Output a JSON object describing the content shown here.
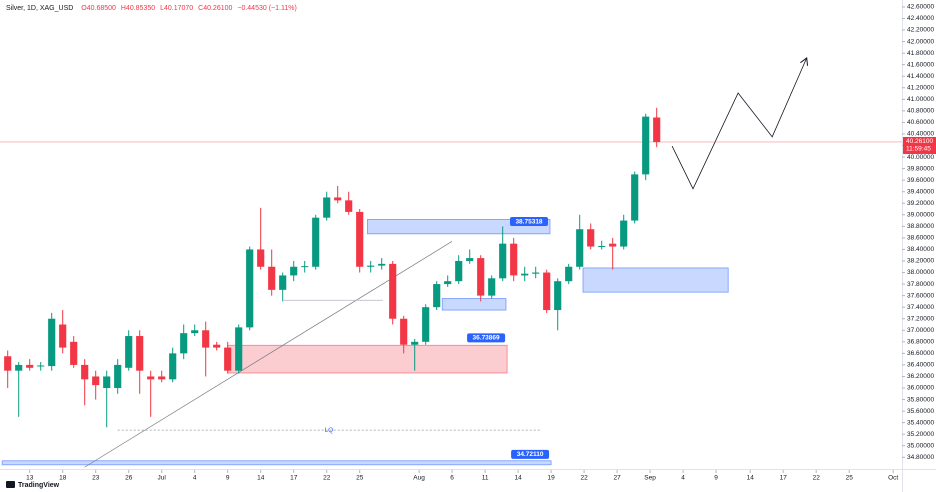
{
  "chart_data": {
    "type": "candlestick",
    "header": {
      "symbol": "Silver, 1D, XAG_USD",
      "open": "O40.68500",
      "high": "H40.85350",
      "low": "L40.17070",
      "close": "C40.26100",
      "change": "−0.44530 (−1.11%)"
    },
    "up_color": "#089981",
    "down_color": "#f23645",
    "x": [
      0,
      1,
      2,
      3,
      4,
      5,
      6,
      7,
      8,
      9,
      10,
      11,
      12,
      13,
      14,
      15,
      16,
      17,
      18,
      19,
      20,
      21,
      22,
      23,
      24,
      25,
      26,
      27,
      28,
      29,
      30,
      31,
      32,
      33,
      34,
      35,
      36,
      37,
      38,
      39,
      40,
      41,
      42,
      43,
      44,
      45,
      46,
      47,
      48,
      49,
      50,
      51,
      52,
      53,
      54,
      55,
      56,
      57,
      58,
      59
    ],
    "candles": {
      "open": [
        36.55,
        36.3,
        36.4,
        36.38,
        36.38,
        37.1,
        36.8,
        36.4,
        36.2,
        36.0,
        36.0,
        36.35,
        36.9,
        36.2,
        36.2,
        36.15,
        36.6,
        36.95,
        37.0,
        36.75,
        36.7,
        36.3,
        37.05,
        38.4,
        38.1,
        37.7,
        37.95,
        38.1,
        38.1,
        38.95,
        39.3,
        39.25,
        39.05,
        38.1,
        38.12,
        38.15,
        37.2,
        36.75,
        36.8,
        37.4,
        37.8,
        37.85,
        38.2,
        38.25,
        37.6,
        37.9,
        38.5,
        37.95,
        37.98,
        38.0,
        37.35,
        37.85,
        38.1,
        38.75,
        38.45,
        38.5,
        38.45,
        38.9,
        39.7,
        40.685
      ],
      "high": [
        36.65,
        36.45,
        36.5,
        36.45,
        37.3,
        37.35,
        36.9,
        36.5,
        36.3,
        36.3,
        36.5,
        37.0,
        37.0,
        36.3,
        36.3,
        36.7,
        37.1,
        37.1,
        37.15,
        36.8,
        36.8,
        37.1,
        38.45,
        39.12,
        38.4,
        38.0,
        38.2,
        38.2,
        39.0,
        39.4,
        39.5,
        39.4,
        39.1,
        38.2,
        38.25,
        38.2,
        37.25,
        36.85,
        37.45,
        37.85,
        37.95,
        38.3,
        38.4,
        38.3,
        37.95,
        38.8,
        38.6,
        38.1,
        38.1,
        38.05,
        37.9,
        38.15,
        39.0,
        38.85,
        38.55,
        38.6,
        39.0,
        39.75,
        40.75,
        40.8535
      ],
      "low": [
        36.0,
        35.5,
        36.3,
        36.3,
        36.3,
        36.6,
        36.35,
        35.7,
        35.8,
        35.32,
        35.9,
        36.3,
        35.9,
        35.5,
        36.1,
        36.1,
        36.5,
        36.9,
        36.2,
        36.65,
        36.25,
        36.25,
        37.0,
        38.05,
        37.6,
        37.5,
        37.85,
        38.0,
        38.05,
        38.9,
        39.2,
        39.0,
        38.0,
        38.0,
        38.05,
        37.1,
        36.6,
        36.3,
        36.75,
        37.35,
        37.75,
        37.8,
        38.15,
        37.5,
        37.55,
        37.85,
        37.85,
        37.85,
        37.9,
        37.3,
        37.0,
        37.8,
        38.05,
        38.4,
        38.4,
        38.05,
        38.4,
        38.85,
        39.6,
        40.1707
      ],
      "close": [
        36.3,
        36.4,
        36.35,
        36.39,
        37.2,
        36.7,
        36.4,
        36.15,
        36.05,
        36.2,
        36.4,
        36.9,
        36.3,
        36.15,
        36.15,
        36.6,
        36.95,
        37.0,
        36.7,
        36.7,
        36.3,
        37.05,
        38.4,
        38.1,
        37.7,
        37.95,
        38.1,
        38.11,
        38.95,
        39.3,
        39.25,
        39.05,
        38.1,
        38.12,
        38.15,
        37.2,
        36.75,
        36.8,
        37.4,
        37.8,
        37.85,
        38.2,
        38.25,
        37.6,
        37.9,
        38.5,
        37.95,
        37.98,
        38.0,
        37.35,
        37.85,
        38.1,
        38.75,
        38.45,
        38.46,
        38.45,
        38.9,
        39.7,
        40.7,
        40.261
      ]
    },
    "xlim": [
      -0.7,
      81.3
    ],
    "ylim": [
      34.58,
      42.72
    ],
    "xticks": [
      {
        "value": 2,
        "label": "13"
      },
      {
        "value": 5,
        "label": "18"
      },
      {
        "value": 8,
        "label": "23"
      },
      {
        "value": 11,
        "label": "26"
      },
      {
        "value": 14,
        "label": "Jul"
      },
      {
        "value": 17,
        "label": "4"
      },
      {
        "value": 20,
        "label": "9"
      },
      {
        "value": 23,
        "label": "14"
      },
      {
        "value": 26,
        "label": "17"
      },
      {
        "value": 29,
        "label": "22"
      },
      {
        "value": 32,
        "label": "25"
      },
      {
        "value": 37.4,
        "label": "Aug"
      },
      {
        "value": 40.4,
        "label": "6"
      },
      {
        "value": 43.4,
        "label": "11"
      },
      {
        "value": 46.4,
        "label": "14"
      },
      {
        "value": 49.4,
        "label": "19"
      },
      {
        "value": 52.4,
        "label": "22"
      },
      {
        "value": 55.4,
        "label": "27"
      },
      {
        "value": 58.4,
        "label": "Sep"
      },
      {
        "value": 61.4,
        "label": "4"
      },
      {
        "value": 64.4,
        "label": "9"
      },
      {
        "value": 67.5,
        "label": "14"
      },
      {
        "value": 70.5,
        "label": "17"
      },
      {
        "value": 73.5,
        "label": "22"
      },
      {
        "value": 76.5,
        "label": "25"
      },
      {
        "value": 80.5,
        "label": "Oct"
      }
    ],
    "yticks": [
      {
        "value": 34.8,
        "label": "34.80000"
      },
      {
        "value": 35.0,
        "label": "35.00000"
      },
      {
        "value": 35.2,
        "label": "35.20000"
      },
      {
        "value": 35.4,
        "label": "35.40000"
      },
      {
        "value": 35.6,
        "label": "35.60000"
      },
      {
        "value": 35.8,
        "label": "35.80000"
      },
      {
        "value": 36.0,
        "label": "36.00000"
      },
      {
        "value": 36.2,
        "label": "36.20000"
      },
      {
        "value": 36.4,
        "label": "36.40000"
      },
      {
        "value": 36.6,
        "label": "36.60000"
      },
      {
        "value": 36.8,
        "label": "36.80000"
      },
      {
        "value": 37.0,
        "label": "37.00000"
      },
      {
        "value": 37.2,
        "label": "37.20000"
      },
      {
        "value": 37.4,
        "label": "37.40000"
      },
      {
        "value": 37.6,
        "label": "37.60000"
      },
      {
        "value": 37.8,
        "label": "37.80000"
      },
      {
        "value": 38.0,
        "label": "38.00000"
      },
      {
        "value": 38.2,
        "label": "38.20000"
      },
      {
        "value": 38.4,
        "label": "38.40000"
      },
      {
        "value": 38.6,
        "label": "38.60000"
      },
      {
        "value": 38.8,
        "label": "38.80000"
      },
      {
        "value": 39.0,
        "label": "39.00000"
      },
      {
        "value": 39.2,
        "label": "39.20000"
      },
      {
        "value": 39.4,
        "label": "39.40000"
      },
      {
        "value": 39.6,
        "label": "39.60000"
      },
      {
        "value": 39.8,
        "label": "39.80000"
      },
      {
        "value": 40.0,
        "label": "40.00000"
      },
      {
        "value": 40.2,
        "label": "40.20000"
      },
      {
        "value": 40.4,
        "label": "40.40000"
      },
      {
        "value": 40.6,
        "label": "40.60000"
      },
      {
        "value": 40.8,
        "label": "40.80000"
      },
      {
        "value": 41.0,
        "label": "41.00000"
      },
      {
        "value": 41.2,
        "label": "41.20000"
      },
      {
        "value": 41.4,
        "label": "41.40000"
      },
      {
        "value": 41.6,
        "label": "41.60000"
      },
      {
        "value": 41.8,
        "label": "41.80000"
      },
      {
        "value": 42.0,
        "label": "42.00000"
      },
      {
        "value": 42.2,
        "label": "42.20000"
      },
      {
        "value": 42.4,
        "label": "42.40000"
      },
      {
        "value": 42.6,
        "label": "42.60000"
      }
    ],
    "last_price": {
      "value": 40.261,
      "label": "40.26100"
    },
    "countdown": "11:59:45",
    "zones": [
      {
        "color": "#2962ff",
        "top": 38.92,
        "bottom": 38.67,
        "x_start": 32.7,
        "x_end": 49.3,
        "price": {
          "value": 38.75318,
          "label": "38.75318"
        }
      },
      {
        "color": "#2962ff",
        "top": 37.55,
        "bottom": 37.35,
        "x_start": 39.5,
        "x_end": 45.3
      },
      {
        "color": "#2962ff",
        "top": 38.08,
        "bottom": 37.66,
        "x_start": 52.3,
        "x_end": 65.5
      },
      {
        "color": "#f23645",
        "top": 36.74,
        "bottom": 36.26,
        "x_start": 20.0,
        "x_end": 45.4,
        "price": {
          "value": 36.73869,
          "label": "36.73869"
        }
      },
      {
        "color": "#2962ff",
        "top": 34.74,
        "bottom": 34.67,
        "x_start": -0.5,
        "x_end": 49.4,
        "price": {
          "value": 34.7211,
          "label": "34.72110"
        }
      }
    ],
    "trendline": {
      "x": [
        7.0,
        40.4
      ],
      "y": [
        34.63,
        38.54
      ]
    },
    "level_line": {
      "x": [
        25.1,
        34.1
      ],
      "y": 37.52
    },
    "lq_line": {
      "x": [
        10.0,
        48.4
      ],
      "y": 35.27,
      "label": "LQ"
    },
    "projection": {
      "x": [
        60.4,
        62.3,
        66.4,
        69.5,
        72.6
      ],
      "y": [
        40.19,
        39.45,
        41.11,
        40.35,
        41.7
      ]
    },
    "brand": "TradingView"
  }
}
